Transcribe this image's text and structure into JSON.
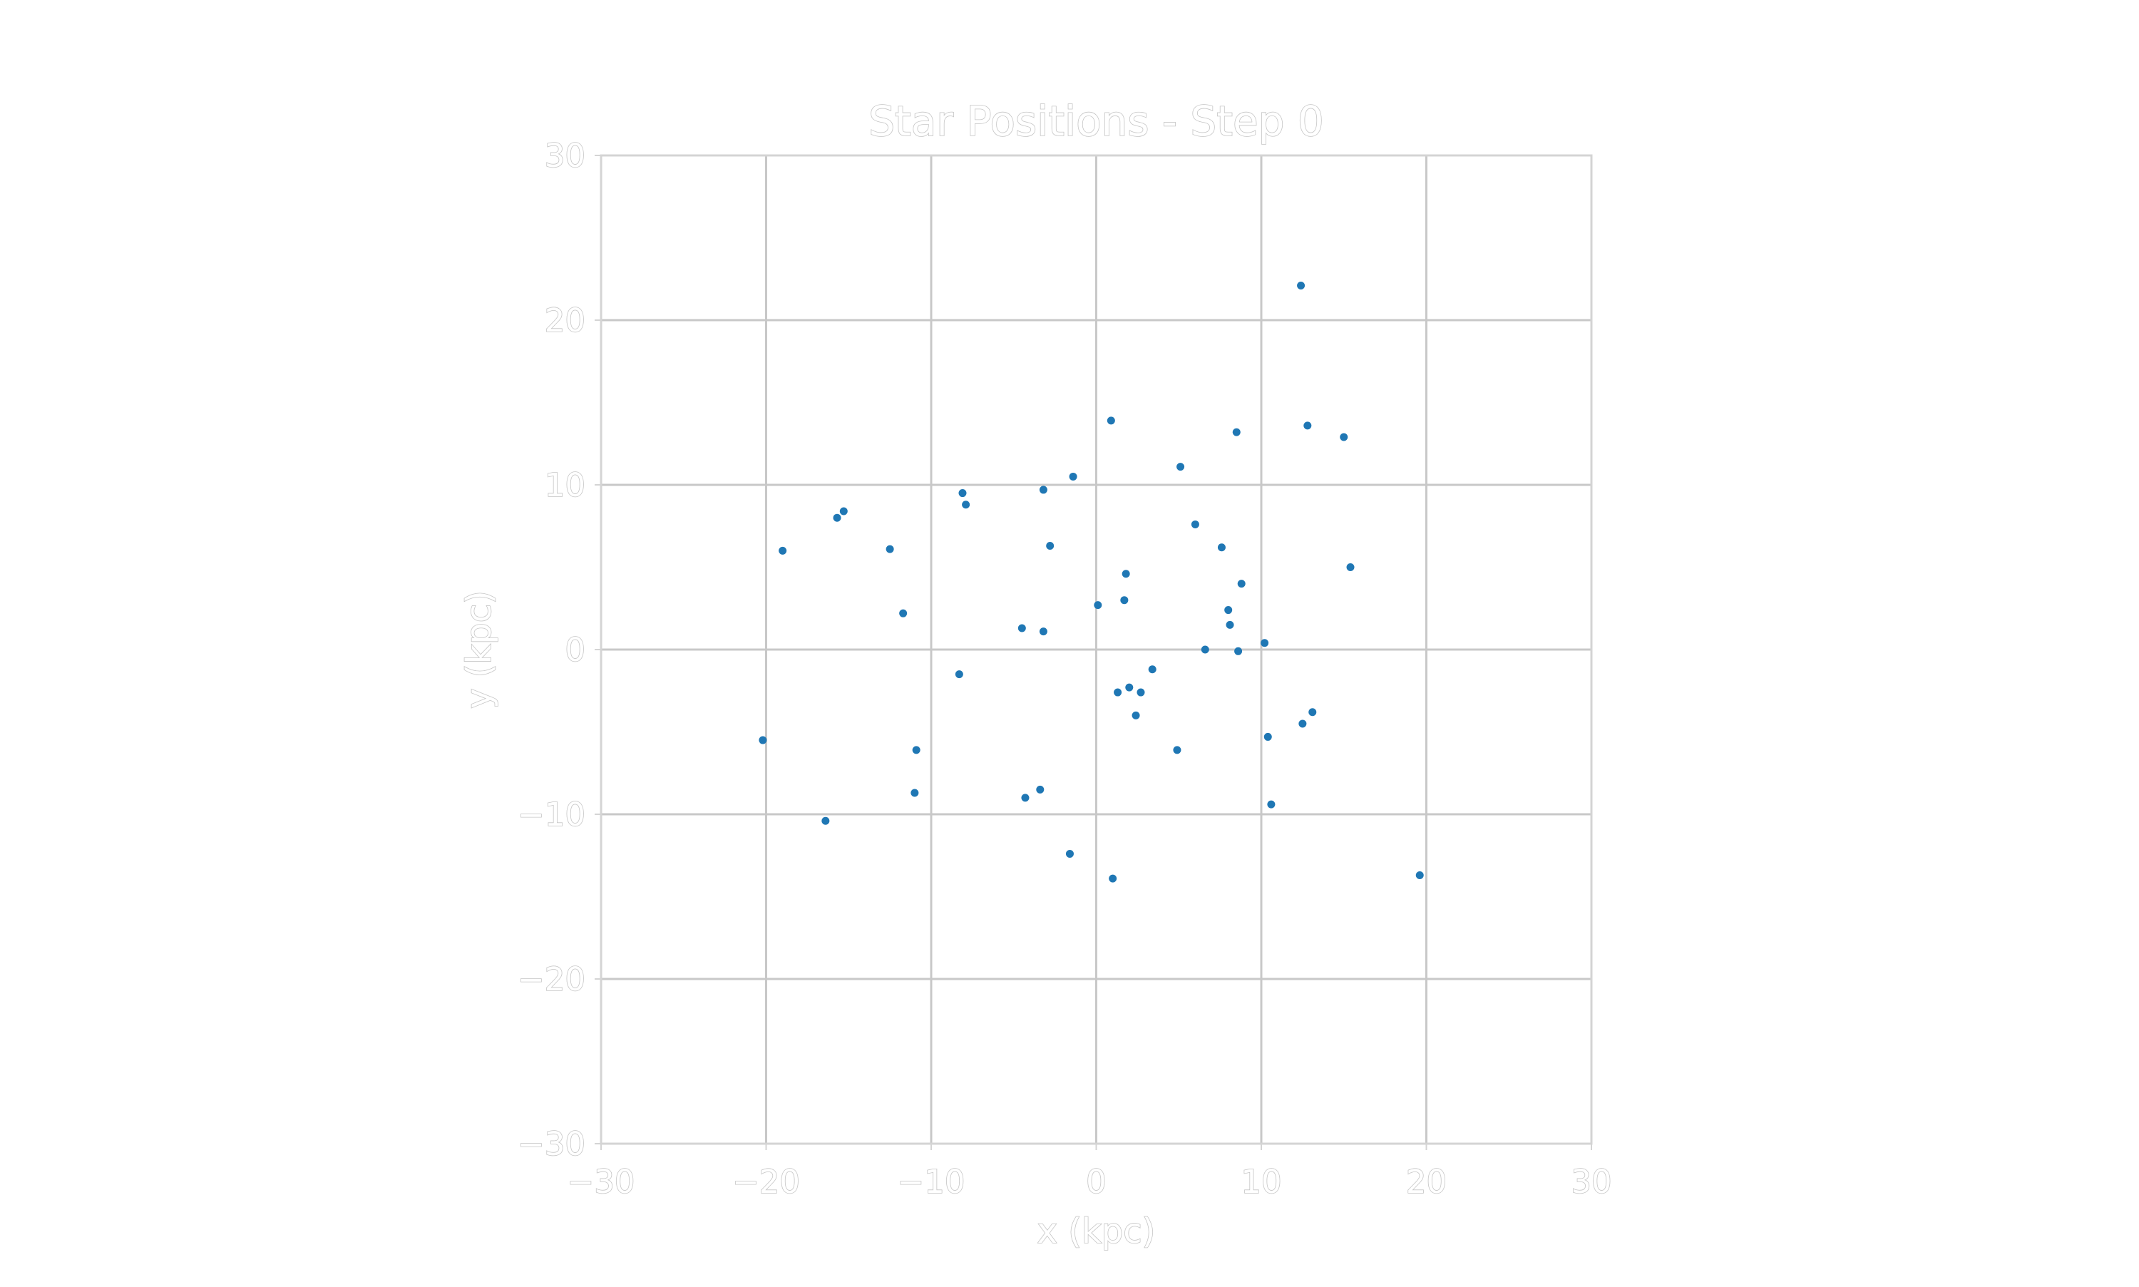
{
  "chart_data": {
    "type": "scatter",
    "title": "Star Positions - Step 0",
    "xlabel": "x (kpc)",
    "ylabel": "y (kpc)",
    "xlim": [
      -30,
      30
    ],
    "ylim": [
      -30,
      30
    ],
    "xticks": [
      -30,
      -20,
      -10,
      0,
      10,
      20,
      30
    ],
    "yticks": [
      -30,
      -20,
      -10,
      0,
      10,
      20,
      30
    ],
    "xtick_labels": [
      "−30",
      "−20",
      "−10",
      "0",
      "10",
      "20",
      "30"
    ],
    "ytick_labels": [
      "−30",
      "−20",
      "−10",
      "0",
      "10",
      "20",
      "30"
    ],
    "grid": true,
    "marker_color": "#1f77b4",
    "points": [
      {
        "x": 12.4,
        "y": 22.1
      },
      {
        "x": 0.9,
        "y": 13.9
      },
      {
        "x": 8.5,
        "y": 13.2
      },
      {
        "x": 12.8,
        "y": 13.6
      },
      {
        "x": 15.0,
        "y": 12.9
      },
      {
        "x": 5.1,
        "y": 11.1
      },
      {
        "x": -1.4,
        "y": 10.5
      },
      {
        "x": -8.1,
        "y": 9.5
      },
      {
        "x": -7.9,
        "y": 8.8
      },
      {
        "x": -3.2,
        "y": 9.7
      },
      {
        "x": -15.7,
        "y": 8.0
      },
      {
        "x": -15.3,
        "y": 8.4
      },
      {
        "x": -19.0,
        "y": 6.0
      },
      {
        "x": -12.5,
        "y": 6.1
      },
      {
        "x": -2.8,
        "y": 6.3
      },
      {
        "x": 6.0,
        "y": 7.6
      },
      {
        "x": 7.6,
        "y": 6.2
      },
      {
        "x": 15.4,
        "y": 5.0
      },
      {
        "x": 1.8,
        "y": 4.6
      },
      {
        "x": 8.8,
        "y": 4.0
      },
      {
        "x": 1.7,
        "y": 3.0
      },
      {
        "x": 0.1,
        "y": 2.7
      },
      {
        "x": -11.7,
        "y": 2.2
      },
      {
        "x": 8.0,
        "y": 2.4
      },
      {
        "x": 8.1,
        "y": 1.5
      },
      {
        "x": -4.5,
        "y": 1.3
      },
      {
        "x": -3.2,
        "y": 1.1
      },
      {
        "x": 10.2,
        "y": 0.4
      },
      {
        "x": 6.6,
        "y": 0.0
      },
      {
        "x": 8.6,
        "y": -0.1
      },
      {
        "x": -8.3,
        "y": -1.5
      },
      {
        "x": 3.4,
        "y": -1.2
      },
      {
        "x": 2.0,
        "y": -2.3
      },
      {
        "x": 1.3,
        "y": -2.6
      },
      {
        "x": 2.7,
        "y": -2.6
      },
      {
        "x": 2.4,
        "y": -4.0
      },
      {
        "x": 13.1,
        "y": -3.8
      },
      {
        "x": 12.5,
        "y": -4.5
      },
      {
        "x": 10.4,
        "y": -5.3
      },
      {
        "x": -20.2,
        "y": -5.5
      },
      {
        "x": -10.9,
        "y": -6.1
      },
      {
        "x": 4.9,
        "y": -6.1
      },
      {
        "x": -11.0,
        "y": -8.7
      },
      {
        "x": -4.3,
        "y": -9.0
      },
      {
        "x": -3.4,
        "y": -8.5
      },
      {
        "x": 10.6,
        "y": -9.4
      },
      {
        "x": -16.4,
        "y": -10.4
      },
      {
        "x": -1.6,
        "y": -12.4
      },
      {
        "x": 1.0,
        "y": -13.9
      },
      {
        "x": 19.6,
        "y": -13.7
      }
    ]
  }
}
